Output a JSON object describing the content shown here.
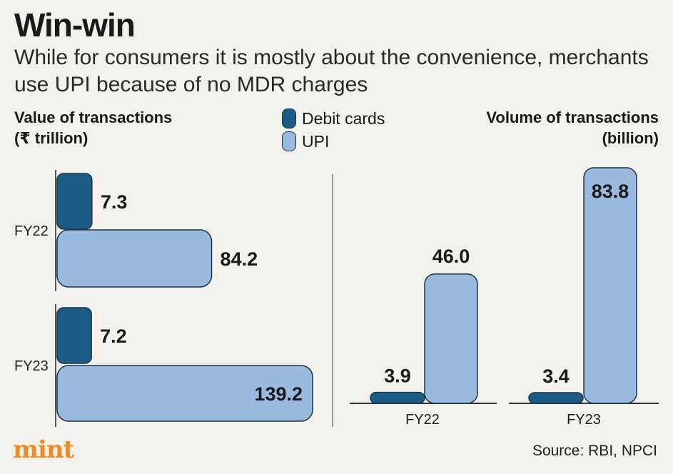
{
  "header": {
    "title": "Win-win",
    "subtitle": "While for consumers it is mostly about the convenience, merchants use UPI because of no MDR charges"
  },
  "legend": {
    "items": [
      {
        "label": "Debit cards",
        "color": "#1b5c86"
      },
      {
        "label": "UPI",
        "color": "#99b9de"
      }
    ]
  },
  "chart_data": [
    {
      "type": "bar",
      "orientation": "horizontal",
      "title": "Value of transactions",
      "unit": "(₹ trillion)",
      "categories": [
        "FY22",
        "FY23"
      ],
      "series": [
        {
          "name": "Debit cards",
          "values": [
            7.3,
            7.2
          ],
          "labels": [
            "7.3",
            "7.2"
          ]
        },
        {
          "name": "UPI",
          "values": [
            84.2,
            139.2
          ],
          "labels": [
            "84.2",
            "139.2"
          ]
        }
      ],
      "xlim": [
        0,
        139.2
      ]
    },
    {
      "type": "bar",
      "orientation": "vertical",
      "title": "Volume of transactions",
      "unit": "(billion)",
      "categories": [
        "FY22",
        "FY23"
      ],
      "series": [
        {
          "name": "Debit cards",
          "values": [
            3.9,
            3.4
          ],
          "labels": [
            "3.9",
            "3.4"
          ]
        },
        {
          "name": "UPI",
          "values": [
            46.0,
            83.8
          ],
          "labels": [
            "46.0",
            "83.8"
          ]
        }
      ],
      "ylim": [
        0,
        83.8
      ]
    }
  ],
  "footer": {
    "brand": "mint",
    "source": "Source: RBI, NPCI"
  },
  "colors": {
    "debit": "#1b5c86",
    "upi": "#99b9de",
    "outline": "#1d3346",
    "axis": "#555555",
    "brand": "#f08a24"
  }
}
